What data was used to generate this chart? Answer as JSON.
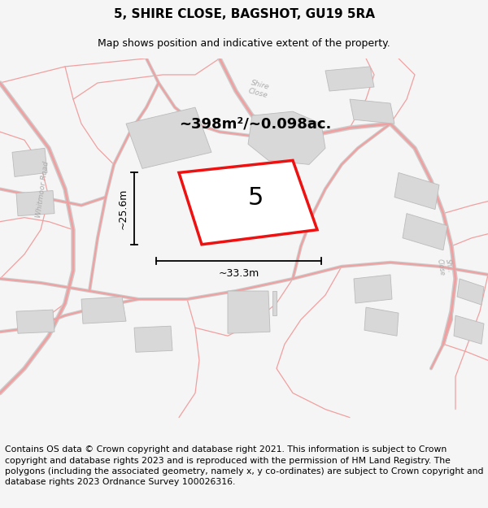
{
  "title": "5, SHIRE CLOSE, BAGSHOT, GU19 5RA",
  "subtitle": "Map shows position and indicative extent of the property.",
  "area_label": "~398m²/~0.098ac.",
  "number_label": "5",
  "width_label": "~33.3m",
  "height_label": "~25.6m",
  "footer": "Contains OS data © Crown copyright and database right 2021. This information is subject to Crown copyright and database rights 2023 and is reproduced with the permission of HM Land Registry. The polygons (including the associated geometry, namely x, y co-ordinates) are subject to Crown copyright and database rights 2023 Ordnance Survey 100026316.",
  "bg_color": "#f5f5f5",
  "map_bg": "#ffffff",
  "plot_color": "#ee1111",
  "road_color": "#f0a0a0",
  "road_outline_color": "#cccccc",
  "building_color": "#d8d8d8",
  "building_edge_color": "#bbbbbb",
  "title_fontsize": 11,
  "subtitle_fontsize": 9,
  "label_color": "#aaaaaa",
  "footer_fontsize": 7.8
}
